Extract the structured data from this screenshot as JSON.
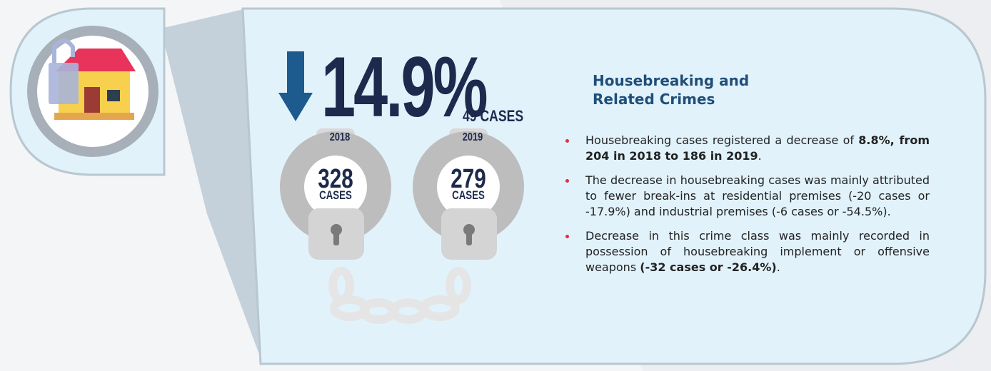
{
  "headline": {
    "change": "14.9%",
    "cases": "49 CASES"
  },
  "cuffs": [
    {
      "year": "2018",
      "count": "328",
      "unit": "CASES"
    },
    {
      "year": "2019",
      "count": "279",
      "unit": "CASES"
    }
  ],
  "section": {
    "title": [
      "Housebreaking and",
      "Related Crimes"
    ],
    "bullets": [
      [
        {
          "text": "Housebreaking cases registered a decrease of ",
          "bold": false
        },
        {
          "text": "8.8%, from 204 in 2018 to 186 in 2019",
          "bold": true
        },
        {
          "text": ".",
          "bold": false
        }
      ],
      [
        {
          "text": "The decrease in housebreaking cases was mainly attributed to fewer break-ins at residential premises (-20 cases or -17.9%) and industrial premises (-6 cases or -54.5%).",
          "bold": false
        }
      ],
      [
        {
          "text": "Decrease in this crime class was mainly recorded in possession of housebreaking implement or offensive weapons ",
          "bold": false
        },
        {
          "text": "(-32 cases or -26.4%)",
          "bold": true
        },
        {
          "text": ".",
          "bold": false
        }
      ]
    ]
  }
}
